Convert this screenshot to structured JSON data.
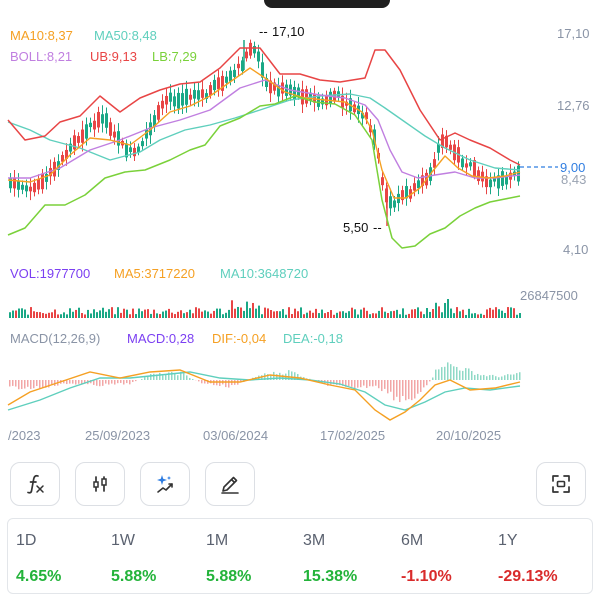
{
  "indicators": {
    "ma10": "MA10:8,37",
    "ma50": "MA50:8,48",
    "boll": "BOLL:8,21",
    "ub": "UB:9,13",
    "lb": "LB:7,29"
  },
  "annotations": {
    "high": "17,10",
    "low": "5,50"
  },
  "price_axis": [
    "17,10",
    "12,76",
    "9,00",
    "8,43",
    "4,10"
  ],
  "volume": {
    "vol": "VOL:1977700",
    "ma5": "MA5:3717220",
    "ma10": "MA10:3648720",
    "axis": "26847500"
  },
  "macd": {
    "params": "MACD(12,26,9)",
    "macd": "MACD:0,28",
    "dif": "DIF:-0,04",
    "dea": "DEA:-0,18"
  },
  "dates": [
    "/2023",
    "25/09/2023",
    "03/06/2024",
    "17/02/2025",
    "20/10/2025"
  ],
  "toolbar_icons": [
    "function-icon",
    "indicator-adjust-icon",
    "ai-sparkle-icon",
    "draw-pencil-icon",
    "fullscreen-icon"
  ],
  "performance": [
    {
      "label": "1D",
      "value": "4.65%",
      "direction": "up"
    },
    {
      "label": "1W",
      "value": "5.88%",
      "direction": "up"
    },
    {
      "label": "1M",
      "value": "5.88%",
      "direction": "up"
    },
    {
      "label": "3M",
      "value": "15.38%",
      "direction": "up"
    },
    {
      "label": "6M",
      "value": "-1.10%",
      "direction": "down"
    },
    {
      "label": "1Y",
      "value": "-29.13%",
      "direction": "down"
    }
  ],
  "colors": {
    "ma10": "#f5a023",
    "ma50": "#5fcfbd",
    "boll": "#c07fe0",
    "ub": "#e84545",
    "lb": "#7ad13a",
    "vol": "#7b3ff2",
    "macd": "#7b3ff2",
    "up": "#23b33a",
    "down": "#d92b2b",
    "current": "#2f7de1"
  }
}
